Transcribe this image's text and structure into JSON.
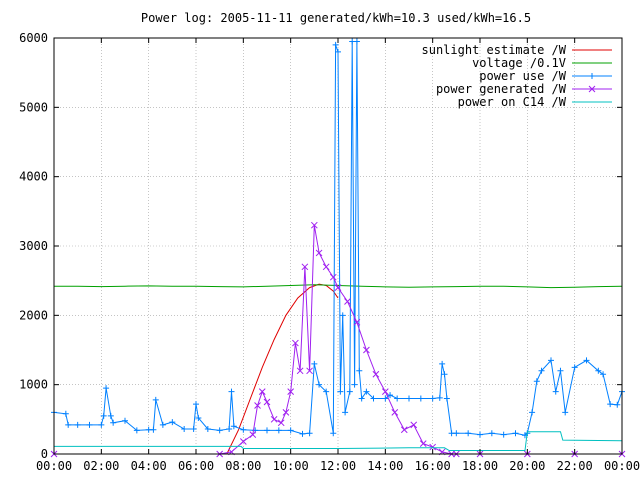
{
  "chart_data": {
    "type": "line",
    "title": "Power log: 2005-11-11 generated/kWh=10.3 used/kWh=16.5",
    "xlabel": "",
    "ylabel": "",
    "xlim": [
      0,
      24
    ],
    "ylim": [
      0,
      6000
    ],
    "x_ticks": [
      "00:00",
      "02:00",
      "04:00",
      "06:00",
      "08:00",
      "10:00",
      "12:00",
      "14:00",
      "16:00",
      "18:00",
      "20:00",
      "22:00",
      "00:00"
    ],
    "y_ticks": [
      "0",
      "1000",
      "2000",
      "3000",
      "4000",
      "5000",
      "6000"
    ],
    "grid": true,
    "legend_position": "top-right",
    "series": [
      {
        "name": "sunlight estimate /W",
        "color": "#e00000",
        "marker": "none",
        "x": [
          7.3,
          7.8,
          8.3,
          8.8,
          9.3,
          9.8,
          10.3,
          10.8,
          11.2,
          11.5,
          11.8,
          12.0
        ],
        "y": [
          0,
          350,
          800,
          1250,
          1650,
          2000,
          2250,
          2400,
          2450,
          2430,
          2350,
          2250
        ]
      },
      {
        "name": "voltage /0.1V",
        "color": "#00a000",
        "marker": "none",
        "x": [
          0,
          1,
          2,
          3,
          4,
          5,
          6,
          7,
          8,
          9,
          10,
          11,
          12,
          13,
          14,
          15,
          16,
          17,
          18,
          19,
          20,
          21,
          22,
          23,
          24
        ],
        "y": [
          2420,
          2420,
          2415,
          2420,
          2425,
          2420,
          2420,
          2415,
          2410,
          2420,
          2430,
          2440,
          2430,
          2420,
          2410,
          2405,
          2410,
          2415,
          2420,
          2420,
          2410,
          2400,
          2405,
          2415,
          2420
        ]
      },
      {
        "name": "power use /W",
        "color": "#0080ff",
        "marker": "plus",
        "x": [
          0,
          0.5,
          0.6,
          1.0,
          1.5,
          2.0,
          2.1,
          2.2,
          2.4,
          2.5,
          3.0,
          3.5,
          4.0,
          4.2,
          4.3,
          4.6,
          5.0,
          5.5,
          5.9,
          6.0,
          6.1,
          6.5,
          7.0,
          7.4,
          7.5,
          7.6,
          8.0,
          8.5,
          9.0,
          9.5,
          10.0,
          10.5,
          10.8,
          11.0,
          11.2,
          11.5,
          11.8,
          11.9,
          12.0,
          12.1,
          12.2,
          12.3,
          12.5,
          12.6,
          12.7,
          12.8,
          12.9,
          13.0,
          13.2,
          13.5,
          14.0,
          14.2,
          14.5,
          15.0,
          15.5,
          16.0,
          16.3,
          16.4,
          16.5,
          16.6,
          16.8,
          17.0,
          17.5,
          18.0,
          18.5,
          19.0,
          19.5,
          19.9,
          20.0,
          20.2,
          20.4,
          20.6,
          21.0,
          21.2,
          21.4,
          21.6,
          22.0,
          22.5,
          23.0,
          23.2,
          23.5,
          23.8,
          24.0
        ],
        "y": [
          600,
          580,
          420,
          420,
          420,
          420,
          550,
          950,
          550,
          450,
          480,
          340,
          350,
          350,
          780,
          420,
          460,
          360,
          360,
          720,
          520,
          360,
          340,
          360,
          900,
          400,
          350,
          340,
          340,
          340,
          340,
          290,
          300,
          1300,
          1000,
          900,
          300,
          5900,
          5800,
          900,
          2000,
          600,
          900,
          5950,
          1000,
          5950,
          1200,
          800,
          900,
          800,
          800,
          850,
          800,
          800,
          800,
          800,
          810,
          1300,
          1150,
          800,
          300,
          300,
          300,
          280,
          300,
          280,
          300,
          270,
          300,
          600,
          1050,
          1200,
          1350,
          900,
          1200,
          600,
          1250,
          1350,
          1200,
          1150,
          720,
          710,
          900
        ]
      },
      {
        "name": "power generated /W",
        "color": "#a020f0",
        "marker": "cross",
        "x": [
          0,
          7.0,
          7.5,
          8.0,
          8.4,
          8.6,
          8.8,
          9.0,
          9.3,
          9.6,
          9.8,
          10.0,
          10.2,
          10.4,
          10.6,
          10.8,
          11.0,
          11.2,
          11.5,
          11.8,
          12.0,
          12.4,
          12.8,
          13.2,
          13.6,
          14.0,
          14.4,
          14.8,
          15.2,
          15.6,
          16.0,
          16.4,
          16.8,
          17.0,
          18.0,
          20.0,
          22.0,
          24.0
        ],
        "y": [
          0,
          0,
          30,
          180,
          280,
          700,
          900,
          750,
          500,
          450,
          600,
          900,
          1600,
          1200,
          2700,
          1200,
          3300,
          2900,
          2700,
          2550,
          2400,
          2200,
          1900,
          1500,
          1150,
          900,
          600,
          350,
          420,
          150,
          100,
          30,
          0,
          0,
          0,
          0,
          0,
          0
        ]
      },
      {
        "name": "power on C14 /W",
        "color": "#00c0c0",
        "marker": "none",
        "x": [
          0,
          7.9,
          8.0,
          12.0,
          15.0,
          16.5,
          16.7,
          19.9,
          20.0,
          21.4,
          21.5,
          24.0
        ],
        "y": [
          110,
          110,
          80,
          80,
          90,
          90,
          50,
          50,
          320,
          320,
          200,
          190
        ]
      }
    ]
  }
}
